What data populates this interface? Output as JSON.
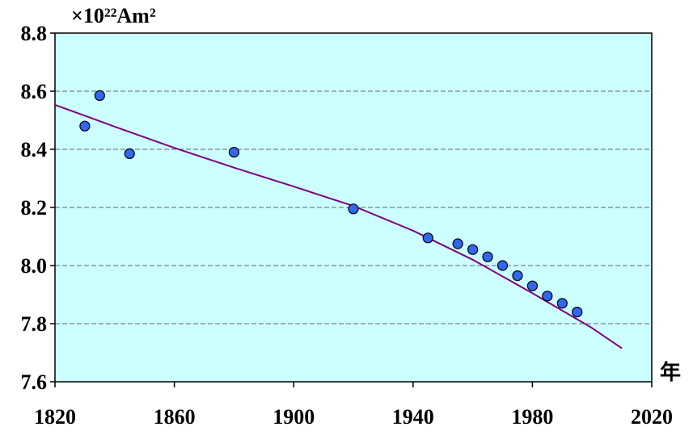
{
  "chart_data": {
    "type": "scatter",
    "ylabel": "×10²²Am²",
    "xlabel": "年",
    "xlim": [
      1820,
      2020
    ],
    "ylim": [
      7.6,
      8.8
    ],
    "x_ticks": [
      "1820",
      "1860",
      "1900",
      "1940",
      "1980",
      "2020"
    ],
    "y_ticks": [
      "8.8",
      "8.6",
      "8.4",
      "8.2",
      "8.0",
      "7.8",
      "7.6"
    ],
    "grid": "horizontal-dashed",
    "colors": {
      "plot_background": "#ccffff",
      "points": "#3366ee",
      "trend_line": "#800080",
      "grid": "#808080"
    },
    "series": [
      {
        "type": "scatter",
        "x": [
          1830,
          1835,
          1845,
          1880,
          1920,
          1945,
          1955,
          1960,
          1965,
          1970,
          1975,
          1980,
          1985,
          1990,
          1995
        ],
        "y": [
          8.48,
          8.585,
          8.385,
          8.39,
          8.195,
          8.095,
          8.075,
          8.055,
          8.03,
          8.0,
          7.965,
          7.93,
          7.895,
          7.87,
          7.84
        ]
      },
      {
        "type": "line",
        "x": [
          1820,
          1840,
          1860,
          1880,
          1900,
          1920,
          1940,
          1960,
          1980,
          2000,
          2010
        ],
        "y": [
          8.553,
          8.478,
          8.405,
          8.337,
          8.272,
          8.205,
          8.12,
          8.02,
          7.905,
          7.785,
          7.715
        ]
      }
    ]
  }
}
